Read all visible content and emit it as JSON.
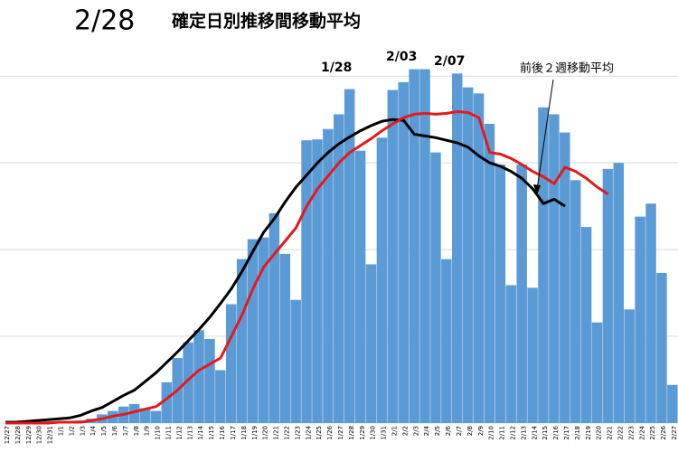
{
  "chart_data": {
    "type": "bar",
    "title": "2/28",
    "subtitle": "確定日別推移間移動平均",
    "annotations": [
      "1/28",
      "2/03",
      "2/07",
      "前後２週移動平均"
    ],
    "categories": [
      "12/27",
      "12/28",
      "12/29",
      "12/30",
      "12/31",
      "1/1",
      "1/2",
      "1/3",
      "1/4",
      "1/5",
      "1/6",
      "1/7",
      "1/8",
      "1/9",
      "1/10",
      "1/11",
      "1/12",
      "1/13",
      "1/14",
      "1/15",
      "1/16",
      "1/17",
      "1/18",
      "1/19",
      "1/20",
      "1/21",
      "1/22",
      "1/23",
      "1/24",
      "1/25",
      "1/26",
      "1/27",
      "1/28",
      "1/29",
      "1/30",
      "1/31",
      "2/1",
      "2/2",
      "2/3",
      "2/4",
      "2/5",
      "2/6",
      "2/7",
      "2/8",
      "2/9",
      "2/10",
      "2/11",
      "2/12",
      "2/13",
      "2/14",
      "2/15",
      "2/16",
      "2/17",
      "2/18",
      "2/19",
      "2/20",
      "2/21",
      "2/22",
      "2/23",
      "2/24",
      "2/25",
      "2/26",
      "2/27"
    ],
    "series": [
      {
        "type": "bar",
        "color": "#5b9bd5",
        "values": [
          0,
          1,
          1,
          1,
          2,
          2,
          2,
          3,
          5,
          10,
          14,
          19,
          22,
          17,
          14,
          47,
          75,
          93,
          107,
          97,
          61,
          137,
          189,
          212,
          214,
          242,
          195,
          142,
          326,
          327,
          339,
          356,
          385,
          314,
          183,
          329,
          384,
          393,
          408,
          408,
          312,
          189,
          403,
          387,
          380,
          345,
          298,
          159,
          298,
          156,
          364,
          356,
          335,
          280,
          226,
          116,
          293,
          300,
          131,
          238,
          253,
          173,
          44
        ]
      },
      {
        "type": "line",
        "color": "#000000",
        "values": [
          1,
          1,
          2,
          3,
          4,
          5,
          6,
          9,
          14,
          18,
          25,
          32,
          38,
          48,
          58,
          70,
          82,
          95,
          108,
          122,
          138,
          155,
          175,
          198,
          220,
          236,
          255,
          272,
          286,
          300,
          312,
          322,
          330,
          337,
          343,
          348,
          350,
          349,
          333,
          331,
          329,
          326,
          323,
          318,
          308,
          300,
          296,
          290,
          282,
          270,
          253,
          258,
          250,
          null,
          null,
          null,
          null,
          null,
          null,
          null,
          null,
          null,
          null
        ]
      },
      {
        "type": "line",
        "color": "#e31a1c",
        "values": [
          0,
          0,
          0,
          0,
          0,
          1,
          1,
          1,
          3,
          5,
          8,
          10,
          13,
          16,
          19,
          28,
          38,
          50,
          61,
          68,
          75,
          100,
          125,
          155,
          180,
          195,
          210,
          225,
          250,
          270,
          285,
          300,
          312,
          320,
          328,
          337,
          345,
          352,
          356,
          357,
          356,
          357,
          359,
          358,
          352,
          312,
          310,
          305,
          298,
          290,
          284,
          276,
          295,
          290,
          282,
          272,
          264,
          null,
          null,
          null,
          null,
          null,
          null
        ]
      }
    ],
    "ylim": [
      0,
      420
    ],
    "yticks": [
      0,
      100,
      200,
      300,
      400
    ],
    "grid": true
  }
}
